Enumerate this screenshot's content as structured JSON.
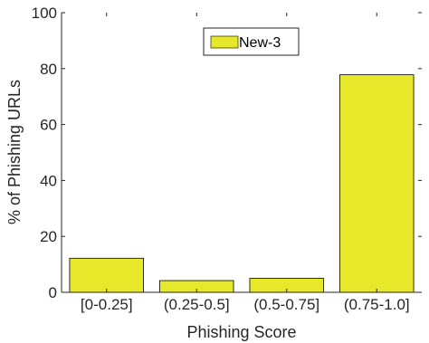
{
  "chart_data": {
    "type": "bar",
    "categories": [
      "[0-0.25]",
      "(0.25-0.5]",
      "(0.5-0.75]",
      "(0.75-1.0]"
    ],
    "series": [
      {
        "name": "New-3",
        "values": [
          12.2,
          4.2,
          5.0,
          77.8
        ],
        "color": "#e8e82a"
      }
    ],
    "xlabel": "Phishing Score",
    "ylabel": "% of Phishing URLs",
    "ylim": [
      0,
      100
    ],
    "yticks": [
      0,
      20,
      40,
      60,
      80,
      100
    ],
    "grid": false,
    "legend_position": "top-center",
    "axis_color": "#262626",
    "bar_edge_color": "#000000"
  }
}
